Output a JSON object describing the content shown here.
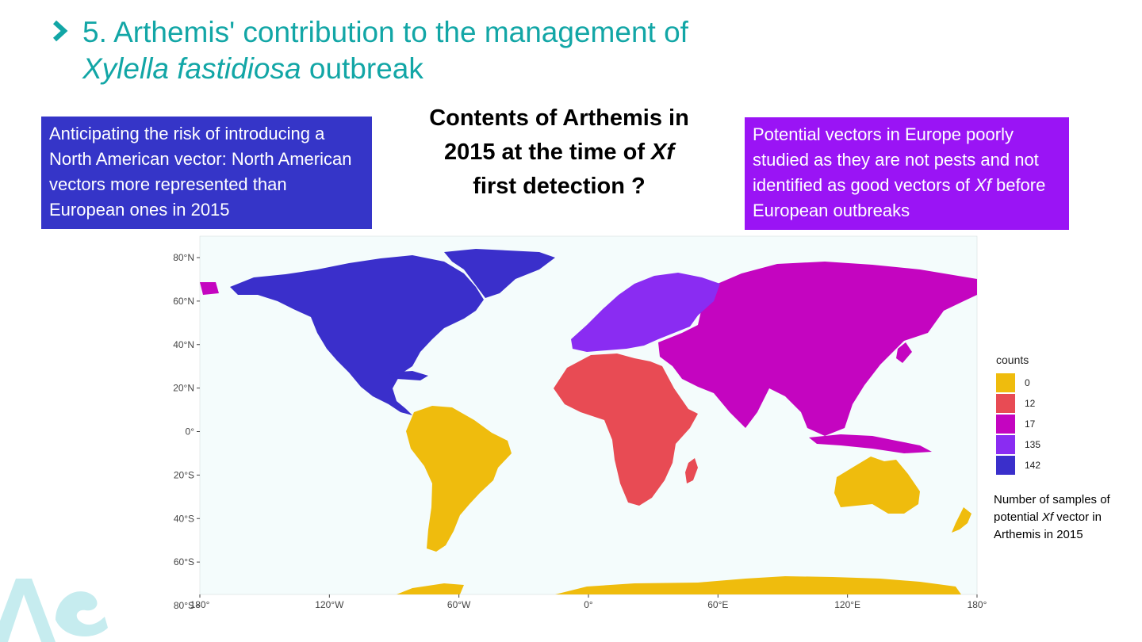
{
  "slide": {
    "title_line1": "5. Arthemis' contribution to the management of",
    "title_line2_italic": "Xylella fastidiosa",
    "title_line2_rest": " outbreak",
    "accent_color": "#12a6a6"
  },
  "left_box": {
    "text": "Anticipating the risk of introducing a North American vector: North American vectors more represented than European ones in 2015",
    "color": "#3535c8"
  },
  "center_question": {
    "line1": "Contents of Arthemis in",
    "line2_a": "2015 at the time of ",
    "line2_italic": "Xf",
    "line3": "first detection ?"
  },
  "right_box": {
    "text_a": "Potential vectors in Europe poorly studied as they are not pests and not identified as good vectors of ",
    "text_italic": "Xf",
    "text_b": " before European  outbreaks",
    "color": "#9a14f5"
  },
  "map": {
    "type": "choropleth",
    "ocean_color": "#f4fcfc",
    "lat_ticks": [
      "80°N",
      "60°N",
      "40°N",
      "20°N",
      "0°",
      "20°S",
      "40°S",
      "60°S",
      "80°S"
    ],
    "lon_ticks": [
      "180°",
      "120°W",
      "60°W",
      "0°",
      "60°E",
      "120°E",
      "180°"
    ],
    "regions": [
      {
        "name": "North America",
        "count": 142
      },
      {
        "name": "Europe",
        "count": 135
      },
      {
        "name": "Asia",
        "count": 17
      },
      {
        "name": "Africa",
        "count": 12
      },
      {
        "name": "South America",
        "count": 0
      },
      {
        "name": "Oceania",
        "count": 0
      },
      {
        "name": "Antarctica",
        "count": 0
      }
    ]
  },
  "legend": {
    "title": "counts",
    "items": [
      {
        "value": "0",
        "color": "#efbc0d"
      },
      {
        "value": "12",
        "color": "#e84b54"
      },
      {
        "value": "17",
        "color": "#c405c0"
      },
      {
        "value": "135",
        "color": "#8a2cf2"
      },
      {
        "value": "142",
        "color": "#3a2fcb"
      }
    ]
  },
  "caption": {
    "part_a": "Number of samples of potential ",
    "italic": "Xf",
    "part_b": " vector in Arthemis in 2015"
  }
}
